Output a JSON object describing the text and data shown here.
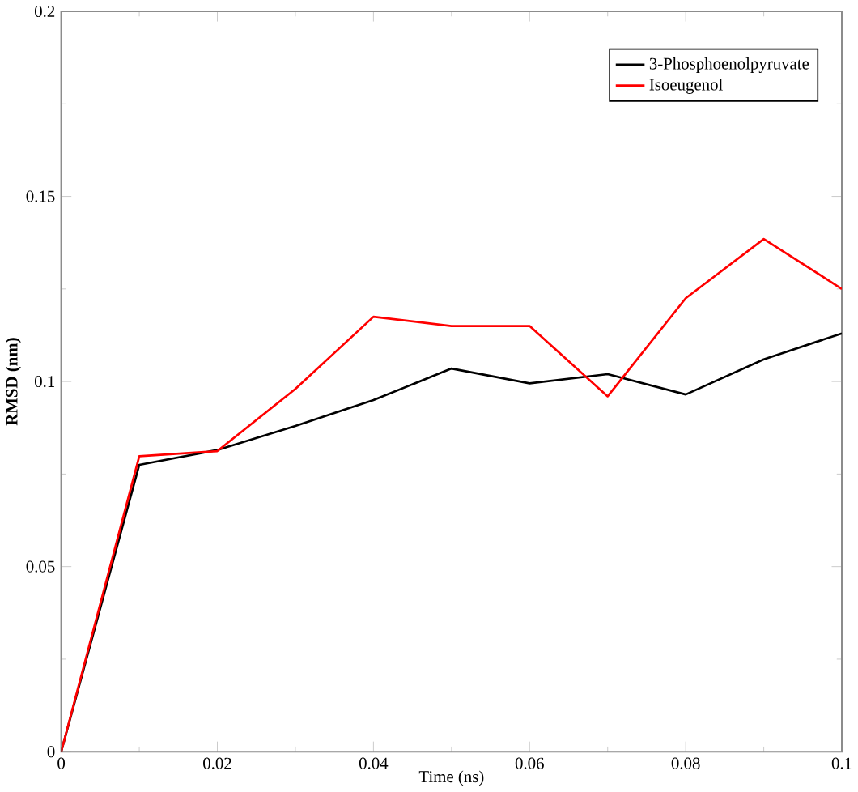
{
  "chart_data": {
    "type": "line",
    "xlabel": "Time (ns)",
    "ylabel": "RMSD (nm)",
    "x": [
      0,
      0.01,
      0.02,
      0.03,
      0.04,
      0.05,
      0.06,
      0.07,
      0.08,
      0.09,
      0.1
    ],
    "series": [
      {
        "name": "3-Phosphoenolpyruvate",
        "color": "#000000",
        "values": [
          0,
          0.0775,
          0.0815,
          0.088,
          0.095,
          0.1035,
          0.0995,
          0.102,
          0.0965,
          0.106,
          0.113
        ]
      },
      {
        "name": "Isoeugenol",
        "color": "#ff0000",
        "values": [
          0,
          0.0798,
          0.0812,
          0.098,
          0.1175,
          0.115,
          0.115,
          0.096,
          0.1225,
          0.1385,
          0.125
        ]
      }
    ],
    "xlim": [
      0,
      0.1
    ],
    "ylim": [
      0,
      0.2
    ],
    "xticks": [
      0,
      0.02,
      0.04,
      0.06,
      0.08,
      0.1
    ],
    "yticks": [
      0,
      0.05,
      0.1,
      0.15,
      0.2
    ],
    "legend": "top right",
    "grid": false,
    "marker": "none",
    "line_style": "solid"
  }
}
